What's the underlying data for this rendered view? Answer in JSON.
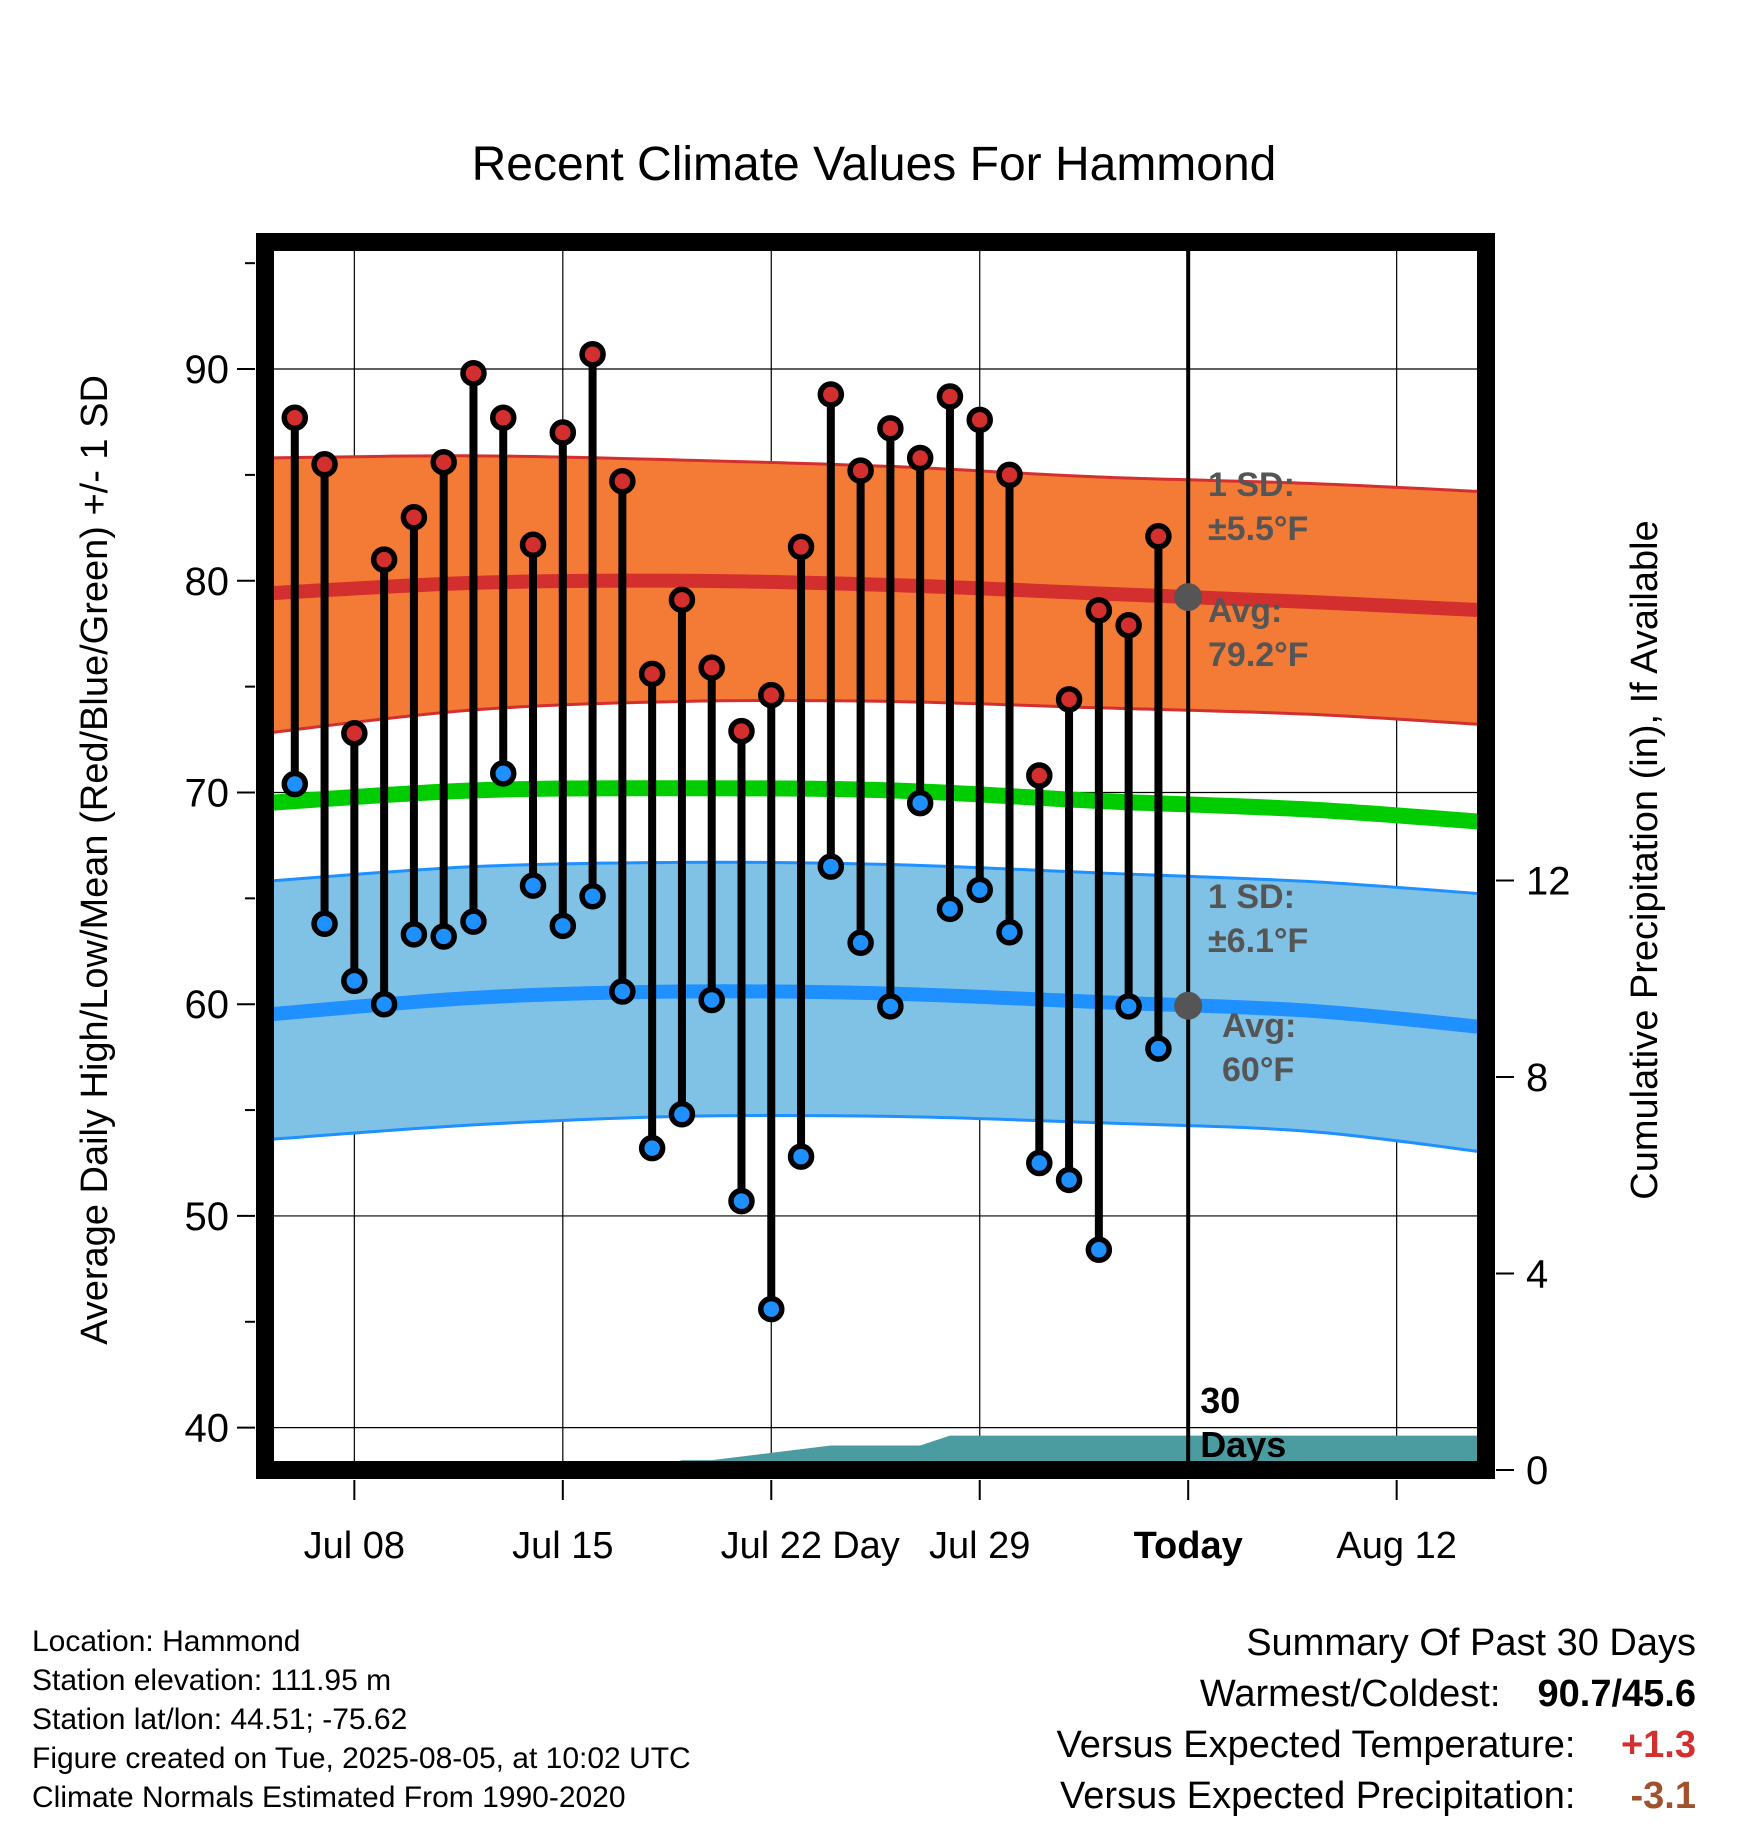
{
  "chart_data": {
    "type": "line",
    "title": "Recent Climate Values For Hammond",
    "xlabel": "Day",
    "ylabel": "Average Daily High/Low/Mean (Red/Blue/Green) +/- 1 SD",
    "y2label": "Cumulative Precipitation (in), If Available",
    "xlim": [
      "2025-07-05",
      "2025-08-15"
    ],
    "ylim": [
      38,
      96
    ],
    "y2lim": [
      0,
      25
    ],
    "grid": true,
    "x_ticks": [
      {
        "date": "2025-07-08",
        "label": "Jul 08"
      },
      {
        "date": "2025-07-15",
        "label": "Jul 15"
      },
      {
        "date": "2025-07-22",
        "label": "Jul 22"
      },
      {
        "date": "2025-07-29",
        "label": "Jul 29"
      },
      {
        "date": "2025-08-05",
        "label": "Today"
      },
      {
        "date": "2025-08-12",
        "label": "Aug 12"
      }
    ],
    "y_ticks": [
      40,
      50,
      60,
      70,
      80,
      90
    ],
    "y2_ticks": [
      0,
      4,
      8,
      12
    ],
    "today": "2025-08-05",
    "today_label": [
      "30",
      "Days"
    ],
    "observed": {
      "dates": [
        "2025-07-06",
        "2025-07-07",
        "2025-07-08",
        "2025-07-09",
        "2025-07-10",
        "2025-07-11",
        "2025-07-12",
        "2025-07-13",
        "2025-07-14",
        "2025-07-15",
        "2025-07-16",
        "2025-07-17",
        "2025-07-18",
        "2025-07-19",
        "2025-07-20",
        "2025-07-21",
        "2025-07-22",
        "2025-07-23",
        "2025-07-24",
        "2025-07-25",
        "2025-07-26",
        "2025-07-27",
        "2025-07-28",
        "2025-07-29",
        "2025-07-30",
        "2025-07-31",
        "2025-08-01",
        "2025-08-02",
        "2025-08-03",
        "2025-08-04"
      ],
      "highs": [
        87.7,
        85.5,
        72.8,
        81.0,
        83.0,
        85.6,
        89.8,
        87.7,
        81.7,
        87.0,
        90.7,
        84.7,
        75.6,
        79.1,
        75.9,
        72.9,
        74.6,
        81.6,
        88.8,
        85.2,
        87.2,
        85.8,
        88.7,
        87.6,
        85.0,
        70.8,
        74.4,
        78.6,
        77.9,
        82.1
      ],
      "lows": [
        70.4,
        63.8,
        61.1,
        60.0,
        63.3,
        63.2,
        63.9,
        70.9,
        65.6,
        63.7,
        65.1,
        60.6,
        53.2,
        54.8,
        60.2,
        50.7,
        45.6,
        52.8,
        66.5,
        62.9,
        59.9,
        69.5,
        64.5,
        65.4,
        63.4,
        52.5,
        51.7,
        48.4,
        59.9,
        57.9
      ]
    },
    "normals": {
      "dates": [
        "2025-07-05",
        "2025-07-12",
        "2025-07-19",
        "2025-07-26",
        "2025-08-02",
        "2025-08-09",
        "2025-08-15"
      ],
      "high_avg": [
        79.4,
        79.9,
        80.0,
        79.8,
        79.4,
        79.0,
        78.6
      ],
      "high_upper": [
        85.8,
        85.9,
        85.7,
        85.4,
        84.9,
        84.6,
        84.2
      ],
      "high_lower": [
        72.8,
        73.9,
        74.3,
        74.3,
        74.0,
        73.7,
        73.2
      ],
      "mean_avg": [
        69.5,
        70.1,
        70.2,
        70.1,
        69.6,
        69.2,
        68.6
      ],
      "low_avg": [
        59.5,
        60.3,
        60.6,
        60.5,
        60.1,
        59.7,
        58.9
      ],
      "low_upper": [
        65.8,
        66.5,
        66.7,
        66.6,
        66.2,
        65.8,
        65.2
      ],
      "low_lower": [
        53.6,
        54.3,
        54.7,
        54.7,
        54.4,
        54.0,
        53.0
      ]
    },
    "precip_cumulative": {
      "dates": [
        "2025-07-05",
        "2025-07-15",
        "2025-07-16",
        "2025-07-18",
        "2025-07-19",
        "2025-07-20",
        "2025-07-24",
        "2025-07-26",
        "2025-07-27",
        "2025-07-28",
        "2025-08-15"
      ],
      "values": [
        0,
        0,
        0,
        0,
        0.2,
        0.2,
        0.5,
        0.5,
        0.5,
        0.7,
        0.7
      ]
    },
    "annotations": {
      "high_sd_label": [
        "1 SD:",
        "±5.5°F"
      ],
      "high_avg_label": [
        "Avg:",
        "79.2°F"
      ],
      "low_sd_label": [
        "1 SD:",
        "±6.1°F"
      ],
      "low_avg_label": [
        "Avg:",
        "60°F"
      ]
    }
  },
  "footer": {
    "location": "Location: Hammond",
    "elevation": "Station elevation: 111.95 m",
    "latlon": "Station lat/lon: 44.51; -75.62",
    "created": "Figure created on Tue, 2025-08-05, at 10:02 UTC",
    "normals": "Climate Normals Estimated From 1990-2020"
  },
  "summary": {
    "title": "Summary Of Past 30 Days",
    "warmest_label": "Warmest/Coldest:",
    "warmest_value": "90.7/45.6",
    "temp_label": "Versus Expected Temperature:",
    "temp_value": "+1.3",
    "precip_label": "Versus Expected Precipitation:",
    "precip_value": "-3.1"
  },
  "colors": {
    "high_band": "#f47b35",
    "high_line": "#d32f2f",
    "mean_line": "#00cc00",
    "low_band": "#80c1e6",
    "low_line": "#1e90ff",
    "precip": "#4a9ca0",
    "positive_anomaly": "#d32f2f",
    "negative_anomaly": "#a0522d",
    "annotation": "#555555"
  }
}
